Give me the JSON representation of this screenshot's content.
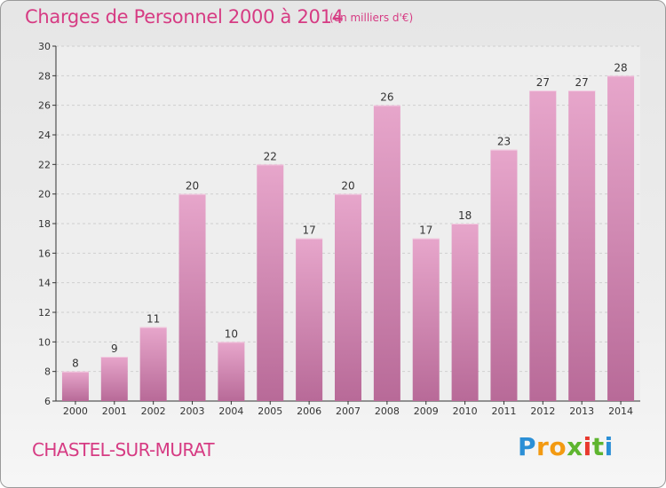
{
  "title": "Charges de Personnel 2000 à 2014",
  "unit": "(en milliers d'€)",
  "commune": "CHASTEL-SUR-MURAT",
  "logo": {
    "letters": [
      "P",
      "r",
      "o",
      "x",
      "i",
      "t",
      "i"
    ],
    "colors": [
      "#2b8fd6",
      "#f39a12",
      "#f39a12",
      "#5eb52f",
      "#e8392e",
      "#5eb52f",
      "#2b8fd6"
    ]
  },
  "colors": {
    "accent": "#d63b83",
    "bar_top": "#e7a6cb",
    "bar_bottom": "#b86a98"
  },
  "chart_data": {
    "type": "bar",
    "title": "Charges de Personnel 2000 à 2014",
    "subtitle": "(en milliers d'€)",
    "categories": [
      "2000",
      "2001",
      "2002",
      "2003",
      "2004",
      "2005",
      "2006",
      "2007",
      "2008",
      "2009",
      "2010",
      "2011",
      "2012",
      "2013",
      "2014"
    ],
    "values": [
      8,
      9,
      11,
      20,
      10,
      22,
      17,
      20,
      26,
      17,
      18,
      23,
      27,
      27,
      28
    ],
    "ylim": [
      6,
      30
    ],
    "yticks": [
      6,
      8,
      10,
      12,
      14,
      16,
      18,
      20,
      22,
      24,
      26,
      28,
      30
    ],
    "grid": true,
    "xlabel": "",
    "ylabel": ""
  }
}
